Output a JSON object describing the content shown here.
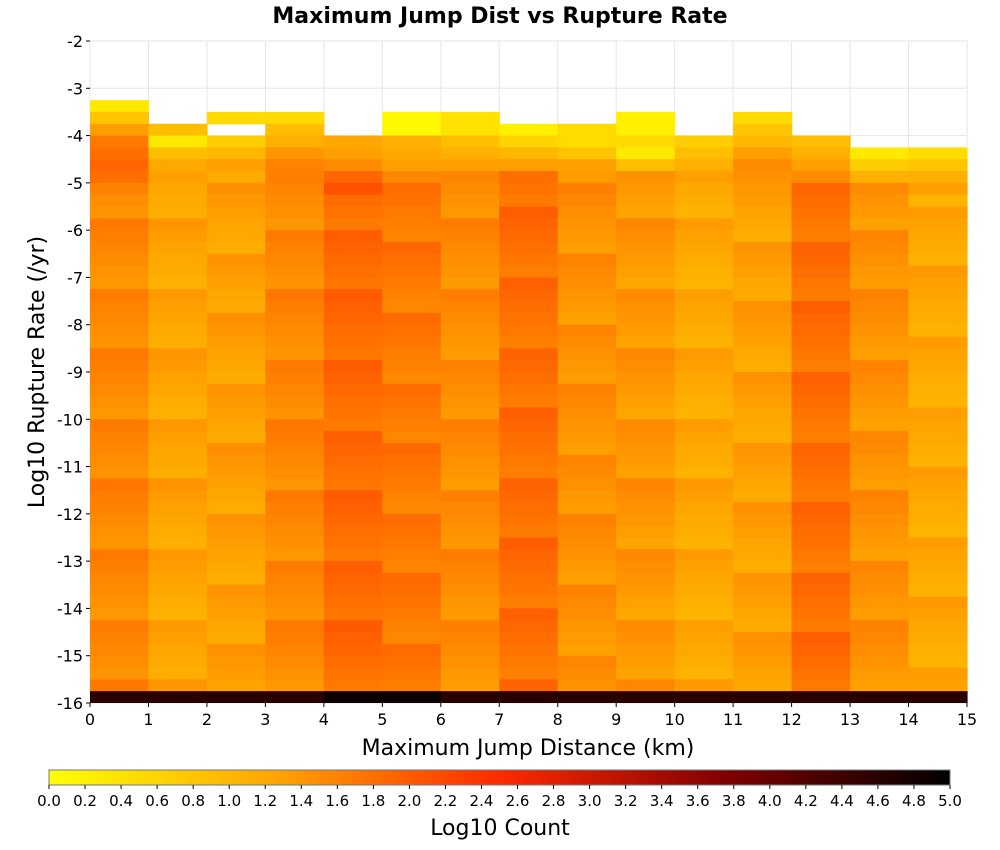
{
  "chart_data": {
    "type": "heatmap",
    "title": "Maximum Jump Dist vs Rupture Rate",
    "xlabel": "Maximum Jump Distance (km)",
    "ylabel": "Log10 Rupture Rate (/yr)",
    "colorbar_label": "Log10 Count",
    "xlim": [
      0,
      15
    ],
    "ylim": [
      -16,
      -2
    ],
    "x_ticks": [
      "0",
      "1",
      "2",
      "3",
      "4",
      "5",
      "6",
      "7",
      "8",
      "9",
      "10",
      "11",
      "12",
      "13",
      "14",
      "15"
    ],
    "y_ticks": [
      "-2",
      "-3",
      "-4",
      "-5",
      "-6",
      "-7",
      "-8",
      "-9",
      "-10",
      "-11",
      "-12",
      "-13",
      "-14",
      "-15",
      "-16"
    ],
    "colorbar_range": [
      0.0,
      5.0
    ],
    "colorbar_ticks": [
      "0.0",
      "0.2",
      "0.4",
      "0.6",
      "0.8",
      "1.0",
      "1.2",
      "1.4",
      "1.6",
      "1.8",
      "2.0",
      "2.2",
      "2.4",
      "2.6",
      "2.8",
      "3.0",
      "3.2",
      "3.4",
      "3.6",
      "3.8",
      "4.0",
      "4.2",
      "4.4",
      "4.6",
      "4.8",
      "5.0"
    ],
    "colorscale": [
      "#ffff00",
      "#ffa500",
      "#ff2a00",
      "#800000",
      "#000000"
    ],
    "x_bin_width": 1,
    "y_bin_height": 0.25,
    "bottom_row": {
      "y": -16,
      "value": 4.6
    },
    "columns": [
      {
        "x": 0,
        "top": -3.25,
        "upper": [
          0.3,
          0.8,
          1.3,
          1.7,
          1.8,
          1.9,
          1.8,
          1.6
        ],
        "body": 1.55
      },
      {
        "x": 1,
        "top": -3.75,
        "upper": [
          0.9,
          0.3,
          0.9,
          1.2
        ],
        "body": 1.25
      },
      {
        "x": 2,
        "top": -3.5,
        "upper": [
          0.5,
          null,
          0.7,
          1.0,
          1.3
        ],
        "body": 1.3
      },
      {
        "x": 3,
        "top": -3.5,
        "upper": [
          0.5,
          0.9,
          1.1,
          1.4,
          1.6
        ],
        "body": 1.55
      },
      {
        "x": 4,
        "top": -4.0,
        "upper": [
          1.2,
          1.3,
          1.5,
          1.9,
          2.1
        ],
        "body": 1.85
      },
      {
        "x": 5,
        "top": -3.5,
        "upper": [
          0.1,
          0.1,
          1.1,
          1.2,
          1.3
        ],
        "body": 1.7
      },
      {
        "x": 6,
        "top": -3.5,
        "upper": [
          0.4,
          0.4,
          0.9,
          1.1,
          1.3
        ],
        "body": 1.5
      },
      {
        "x": 7,
        "top": -3.75,
        "upper": [
          0.2,
          0.6,
          1.0,
          1.3
        ],
        "body": 1.8
      },
      {
        "x": 8,
        "top": -3.75,
        "upper": [
          0.5,
          0.5,
          0.8,
          1.3
        ],
        "body": 1.45
      },
      {
        "x": 9,
        "top": -3.5,
        "upper": [
          0.2,
          0.2,
          0.5,
          0.3,
          0.9
        ],
        "body": 1.4
      },
      {
        "x": 10,
        "top": -4.0,
        "upper": [
          0.7,
          0.9,
          1.1,
          1.3
        ],
        "body": 1.2
      },
      {
        "x": 11,
        "top": -3.5,
        "upper": [
          0.5,
          0.8,
          1.0,
          1.3,
          1.5
        ],
        "body": 1.3
      },
      {
        "x": 12,
        "top": -4.0,
        "upper": [
          0.9,
          1.1,
          1.3,
          1.5
        ],
        "body": 1.8
      },
      {
        "x": 13,
        "top": -4.25,
        "upper": [
          0.3,
          0.7,
          1.1,
          1.5
        ],
        "body": 1.45
      },
      {
        "x": 14,
        "top": -4.25,
        "upper": [
          0.5,
          0.8,
          1.1,
          1.3
        ],
        "body": 1.2
      }
    ]
  }
}
